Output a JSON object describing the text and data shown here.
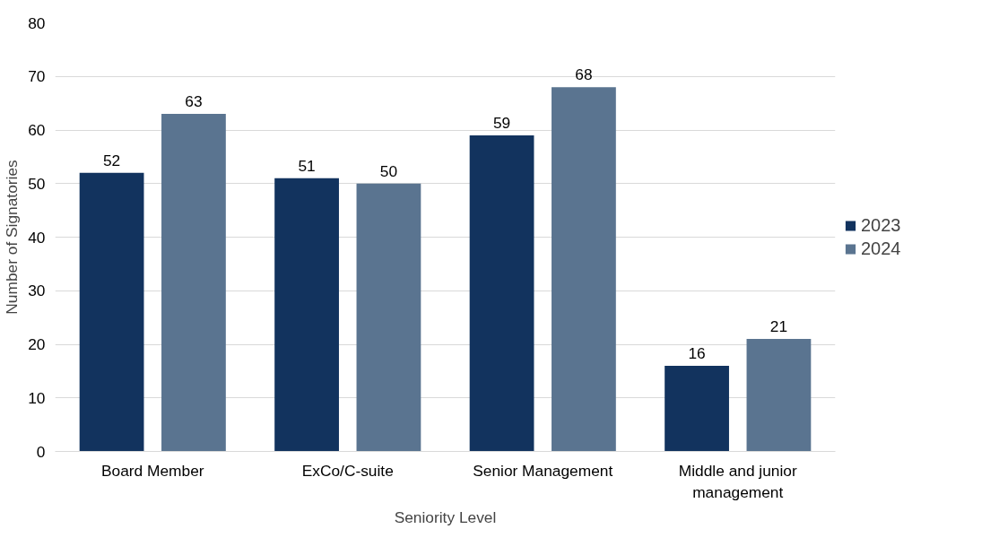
{
  "chart_data": {
    "type": "bar",
    "xlabel": "Seniority Level",
    "ylabel": "Number of Signatories",
    "categories": [
      "Board Member",
      "ExCo/C-suite",
      "Senior Management",
      "Middle and junior management"
    ],
    "series": [
      {
        "name": "2023",
        "color": "#12335e",
        "values": [
          52,
          51,
          59,
          16
        ]
      },
      {
        "name": "2024",
        "color": "#5a7490",
        "values": [
          63,
          50,
          68,
          21
        ]
      }
    ],
    "ylim": [
      0,
      80
    ],
    "yticks": [
      0,
      10,
      20,
      30,
      40,
      50,
      60,
      70,
      80
    ],
    "grid": "y",
    "legend": "right",
    "data_labels": true
  }
}
